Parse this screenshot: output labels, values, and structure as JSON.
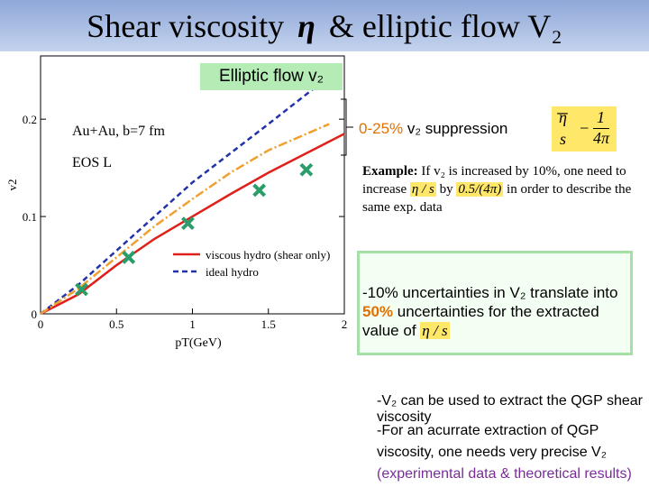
{
  "header": {
    "title_parts": [
      "Shear viscosity",
      "η",
      "& elliptic flow",
      "V₂"
    ]
  },
  "chart_data": {
    "type": "line",
    "label": "Elliptic flow v₂",
    "xlabel": "pT(GeV)",
    "ylabel": "v2",
    "xlim": [
      0,
      2
    ],
    "xticks": [
      0,
      0.5,
      1,
      1.5,
      2
    ],
    "ylim": [
      0,
      0.265
    ],
    "yticks": [
      0,
      0.1,
      0.2
    ],
    "annotations": [
      "Au+Au, b=7 fm",
      "EOS L"
    ],
    "series": [
      {
        "name": "viscous hydro (shear only)",
        "color": "#e0201b",
        "style": "solid",
        "x": [
          0,
          0.25,
          0.5,
          0.75,
          1,
          1.25,
          1.5,
          2
        ],
        "values": [
          0,
          0.02,
          0.05,
          0.077,
          0.1,
          0.123,
          0.145,
          0.185
        ]
      },
      {
        "name": "ideal hydro",
        "color": "#2233aa",
        "style": "dashed",
        "x": [
          0,
          0.25,
          0.5,
          0.75,
          1,
          1.25,
          1.5,
          1.95
        ],
        "values": [
          0,
          0.03,
          0.065,
          0.1,
          0.135,
          0.165,
          0.195,
          0.25
        ]
      },
      {
        "color": "#f0a030",
        "style": "dashdot",
        "x": [
          0,
          0.25,
          0.5,
          0.75,
          1,
          1.25,
          1.5,
          1.9
        ],
        "values": [
          0,
          0.026,
          0.058,
          0.09,
          0.118,
          0.145,
          0.168,
          0.195
        ]
      },
      {
        "color": "#2a9d6a",
        "style": "cross",
        "x": [
          0.27,
          0.58,
          0.97,
          1.44,
          1.75
        ],
        "values": [
          0.025,
          0.058,
          0.093,
          0.127,
          0.148
        ]
      }
    ]
  },
  "right": {
    "suppression_pct": "0-25%",
    "suppression_text": "v₂ suppression",
    "formula": [
      "η",
      "s",
      "1",
      "4π"
    ],
    "example_head": "Example:",
    "example_parts": [
      "If v₂ is increased by 10%, one need to increase",
      "η / s",
      "by",
      "0.5/(4π)",
      "in order to describe the same exp. data"
    ],
    "box_parts": [
      "-10% uncertainties in V₂ translate into",
      "50%",
      "uncertainties for the extracted value of",
      "η / s"
    ]
  },
  "bottom": [
    "-V₂ can be used to extract the QGP shear viscosity",
    "-For an acurrate extraction of QGP viscosity, one needs very precise V₂",
    "(experimental data & theoretical results)"
  ]
}
